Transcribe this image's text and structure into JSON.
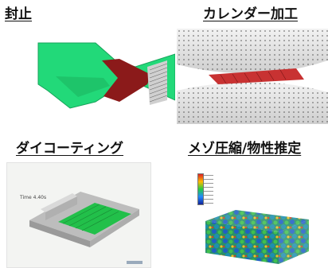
{
  "panels": [
    {
      "title": "封止",
      "visual": "sealing-simulation"
    },
    {
      "title": "カレンダー加工",
      "visual": "calendering-simulation"
    },
    {
      "title": "ダイコーティング",
      "visual": "die-coating-simulation",
      "caption": "Time 4.40s"
    },
    {
      "title": "メゾ圧縮/物性推定",
      "visual": "meso-compression-simulation"
    }
  ],
  "colors": {
    "green": "#22d979",
    "darkred": "#8b1a1a",
    "red": "#c83232",
    "gray": "#c8c8c8"
  }
}
